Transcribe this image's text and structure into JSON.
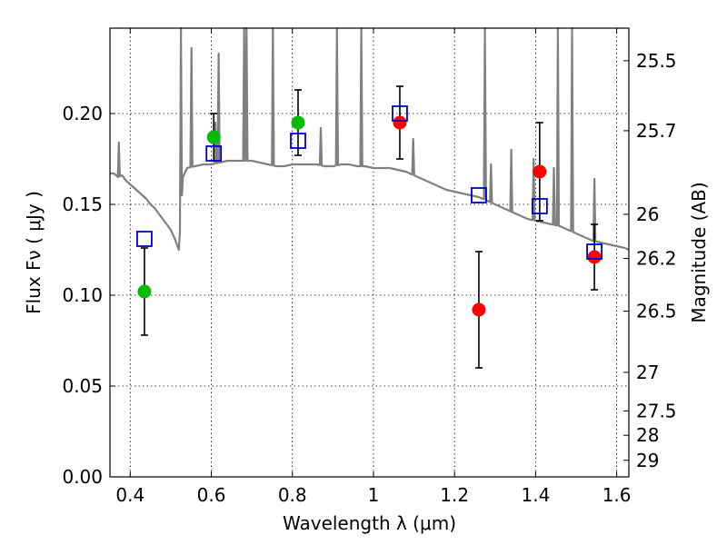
{
  "chart_data": {
    "type": "scatter",
    "title": "",
    "xlabel": "Wavelength  λ (μm)",
    "ylabel": "Flux  Fν  ( μJy )",
    "ylabel_right": "Magnitude (AB)",
    "xlim": [
      0.35,
      1.63
    ],
    "ylim": [
      0.0,
      0.247
    ],
    "x_ticks": [
      0.4,
      0.6,
      0.8,
      1.0,
      1.2,
      1.4,
      1.6
    ],
    "x_tick_labels": [
      "0.4",
      "0.6",
      "0.8",
      "1",
      "1.2",
      "1.4",
      "1.6"
    ],
    "y_ticks": [
      0.0,
      0.05,
      0.1,
      0.15,
      0.2
    ],
    "y_tick_labels": [
      "0.00",
      "0.05",
      "0.10",
      "0.15",
      "0.20"
    ],
    "right_ticks": [
      {
        "mag": 25.5,
        "label": "25.5"
      },
      {
        "mag": 25.7,
        "label": "25.7"
      },
      {
        "mag": 26.0,
        "label": "26"
      },
      {
        "mag": 26.2,
        "label": "26.2"
      },
      {
        "mag": 26.5,
        "label": "26.5"
      },
      {
        "mag": 27.0,
        "label": "27"
      },
      {
        "mag": 27.5,
        "label": "27.5"
      },
      {
        "mag": 28.0,
        "label": "28"
      },
      {
        "mag": 29.0,
        "label": "29"
      }
    ],
    "grid": true,
    "colors": {
      "green": "#00bb00",
      "red": "#ff0000",
      "model_box": "#0000cc",
      "template": "#808080",
      "errorbar": "#000000"
    },
    "series": [
      {
        "marker": "circle",
        "color": "green",
        "points": [
          {
            "x": 0.435,
            "y": 0.102,
            "err": 0.024
          },
          {
            "x": 0.606,
            "y": 0.187,
            "err": 0.013
          },
          {
            "x": 0.814,
            "y": 0.195,
            "err": 0.018
          }
        ]
      },
      {
        "marker": "circle",
        "color": "red",
        "points": [
          {
            "x": 1.065,
            "y": 0.195,
            "err": 0.02
          },
          {
            "x": 1.26,
            "y": 0.092,
            "err": 0.032
          },
          {
            "x": 1.41,
            "y": 0.168,
            "err": 0.027
          },
          {
            "x": 1.545,
            "y": 0.121,
            "err": 0.018
          }
        ]
      },
      {
        "marker": "square",
        "color": "model_box",
        "points": [
          {
            "x": 0.435,
            "y": 0.131
          },
          {
            "x": 0.606,
            "y": 0.178
          },
          {
            "x": 0.814,
            "y": 0.185
          },
          {
            "x": 1.065,
            "y": 0.2
          },
          {
            "x": 1.26,
            "y": 0.155
          },
          {
            "x": 1.41,
            "y": 0.149
          },
          {
            "x": 1.545,
            "y": 0.124
          }
        ]
      }
    ],
    "template_spectrum": {
      "color": "template",
      "continuum": [
        [
          0.35,
          0.167
        ],
        [
          0.36,
          0.167
        ],
        [
          0.37,
          0.165
        ],
        [
          0.38,
          0.166
        ],
        [
          0.39,
          0.163
        ],
        [
          0.4,
          0.161
        ],
        [
          0.41,
          0.159
        ],
        [
          0.42,
          0.157
        ],
        [
          0.43,
          0.155
        ],
        [
          0.44,
          0.153
        ],
        [
          0.45,
          0.15
        ],
        [
          0.46,
          0.148
        ],
        [
          0.47,
          0.145
        ],
        [
          0.48,
          0.142
        ],
        [
          0.49,
          0.139
        ],
        [
          0.5,
          0.136
        ],
        [
          0.51,
          0.131
        ],
        [
          0.515,
          0.128
        ],
        [
          0.52,
          0.125
        ],
        [
          0.53,
          0.165
        ],
        [
          0.54,
          0.17
        ],
        [
          0.56,
          0.171
        ],
        [
          0.58,
          0.172
        ],
        [
          0.6,
          0.172
        ],
        [
          0.62,
          0.173
        ],
        [
          0.64,
          0.174
        ],
        [
          0.66,
          0.174
        ],
        [
          0.68,
          0.174
        ],
        [
          0.7,
          0.174
        ],
        [
          0.72,
          0.173
        ],
        [
          0.74,
          0.172
        ],
        [
          0.76,
          0.171
        ],
        [
          0.78,
          0.171
        ],
        [
          0.8,
          0.172
        ],
        [
          0.82,
          0.172
        ],
        [
          0.84,
          0.172
        ],
        [
          0.86,
          0.172
        ],
        [
          0.88,
          0.171
        ],
        [
          0.9,
          0.171
        ],
        [
          0.92,
          0.172
        ],
        [
          0.94,
          0.172
        ],
        [
          0.96,
          0.171
        ],
        [
          0.98,
          0.171
        ],
        [
          1.0,
          0.17
        ],
        [
          1.02,
          0.17
        ],
        [
          1.04,
          0.17
        ],
        [
          1.06,
          0.169
        ],
        [
          1.08,
          0.168
        ],
        [
          1.1,
          0.166
        ],
        [
          1.12,
          0.164
        ],
        [
          1.14,
          0.162
        ],
        [
          1.16,
          0.16
        ],
        [
          1.18,
          0.158
        ],
        [
          1.2,
          0.157
        ],
        [
          1.22,
          0.156
        ],
        [
          1.24,
          0.155
        ],
        [
          1.26,
          0.154
        ],
        [
          1.28,
          0.152
        ],
        [
          1.3,
          0.15
        ],
        [
          1.32,
          0.148
        ],
        [
          1.34,
          0.146
        ],
        [
          1.36,
          0.144
        ],
        [
          1.38,
          0.142
        ],
        [
          1.4,
          0.141
        ],
        [
          1.42,
          0.14
        ],
        [
          1.44,
          0.139
        ],
        [
          1.46,
          0.138
        ],
        [
          1.48,
          0.136
        ],
        [
          1.5,
          0.134
        ],
        [
          1.52,
          0.132
        ],
        [
          1.54,
          0.13
        ],
        [
          1.56,
          0.129
        ],
        [
          1.58,
          0.128
        ],
        [
          1.6,
          0.127
        ],
        [
          1.62,
          0.126
        ],
        [
          1.63,
          0.125
        ]
      ],
      "lines": [
        {
          "x": 0.372,
          "top": 0.184
        },
        {
          "x": 0.525,
          "top": 0.3
        },
        {
          "x": 0.551,
          "top": 0.236
        },
        {
          "x": 0.61,
          "top": 0.195
        },
        {
          "x": 0.618,
          "top": 0.233
        },
        {
          "x": 0.681,
          "top": 0.3
        },
        {
          "x": 0.687,
          "top": 0.3
        },
        {
          "x": 0.752,
          "top": 0.3
        },
        {
          "x": 0.87,
          "top": 0.192
        },
        {
          "x": 0.91,
          "top": 0.3
        },
        {
          "x": 0.97,
          "top": 0.3
        },
        {
          "x": 1.098,
          "top": 0.186
        },
        {
          "x": 1.275,
          "top": 0.3
        },
        {
          "x": 1.29,
          "top": 0.172
        },
        {
          "x": 1.34,
          "top": 0.18
        },
        {
          "x": 1.395,
          "top": 0.175
        },
        {
          "x": 1.445,
          "top": 0.17
        },
        {
          "x": 1.455,
          "top": 0.3
        },
        {
          "x": 1.49,
          "top": 0.3
        },
        {
          "x": 1.545,
          "top": 0.164
        }
      ]
    }
  }
}
